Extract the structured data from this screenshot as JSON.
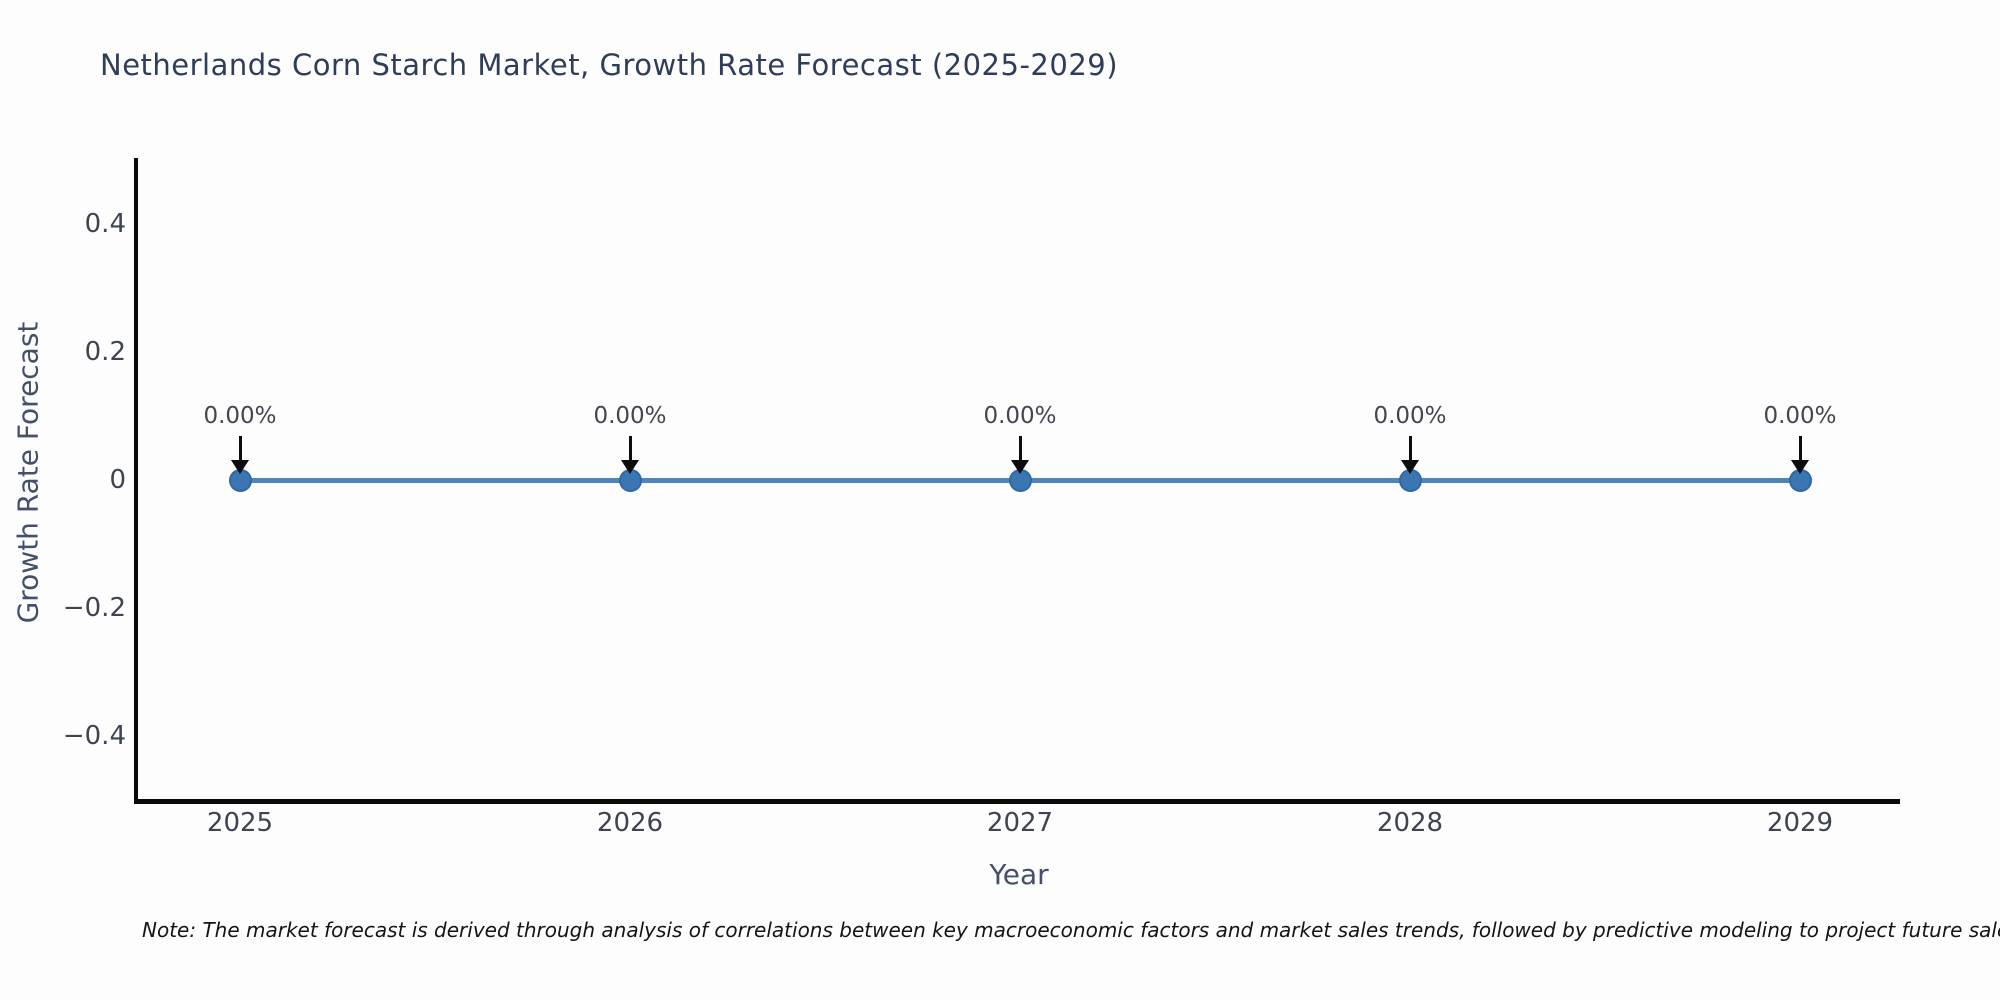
{
  "title": "Netherlands Corn Starch Market, Growth Rate Forecast (2025-2029)",
  "note": "Note: The market forecast is derived through analysis of correlations between key macroeconomic factors and market sales trends, followed by predictive modeling to project future sales",
  "colors": {
    "line": "#4e86ba",
    "marker": "#3b76b3",
    "spine": "#0a0a0a",
    "title_text": "#2e3d59",
    "axis_title_text": "#42506a",
    "tick_text": "#3e4450",
    "annotation_text": "#42464e",
    "background": "#fdfdfd"
  },
  "chart_data": {
    "type": "line",
    "title": "Netherlands Corn Starch Market, Growth Rate Forecast (2025-2029)",
    "x": [
      2025,
      2026,
      2027,
      2028,
      2029
    ],
    "series": [
      {
        "name": "Growth Rate Forecast",
        "values": [
          0,
          0,
          0,
          0,
          0
        ],
        "point_labels": [
          "0.00%",
          "0.00%",
          "0.00%",
          "0.00%",
          "0.00%"
        ]
      }
    ],
    "xlabel": "Year",
    "ylabel": "Growth Rate Forecast",
    "xticklabels": [
      "2025",
      "2026",
      "2027",
      "2028",
      "2029"
    ],
    "ytick_values": [
      0.4,
      0.2,
      0,
      -0.2,
      -0.4
    ],
    "yticklabels": [
      "0.4",
      "0.2",
      "0",
      "−0.2",
      "−0.4"
    ],
    "ylim": [
      -0.5,
      0.5
    ],
    "grid": false,
    "legend_position": "none",
    "annotation_arrows": "black arrows pointing down to each data point"
  }
}
